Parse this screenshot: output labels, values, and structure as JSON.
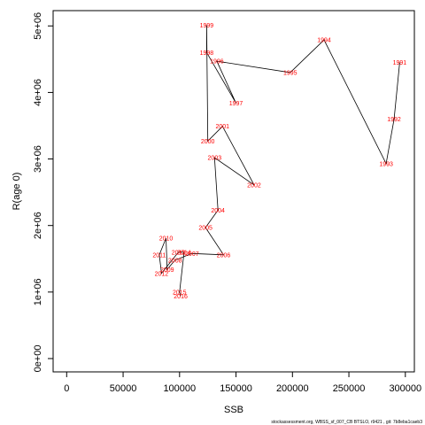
{
  "chart_data": {
    "type": "line",
    "xlabel": "SSB",
    "ylabel": "R(age 0)",
    "footer": "stockassessment.org,  WBSS_sf_007_CB BTSLO,  r9421 ,  git: 7b8eba1caeb3",
    "xlim": [
      -12000,
      308000
    ],
    "ylim": [
      -200000,
      5230000
    ],
    "x_ticks": [
      0,
      50000,
      100000,
      150000,
      200000,
      250000,
      300000
    ],
    "y_ticks": [
      0,
      1000000,
      2000000,
      3000000,
      4000000,
      5000000
    ],
    "x_tick_labels": [
      "0",
      "50000",
      "100000",
      "150000",
      "200000",
      "250000",
      "300000"
    ],
    "y_tick_labels": [
      "0e+00",
      "1e+06",
      "2e+06",
      "3e+06",
      "4e+06",
      "5e+06"
    ],
    "line_color": "#000000",
    "label_color": "#ff0000",
    "points": [
      {
        "label": "1991",
        "x": 295000,
        "y": 4450000
      },
      {
        "label": "1992",
        "x": 290000,
        "y": 3600000
      },
      {
        "label": "1993",
        "x": 283000,
        "y": 2930000
      },
      {
        "label": "1994",
        "x": 228000,
        "y": 4790000
      },
      {
        "label": "1995",
        "x": 198000,
        "y": 4300000
      },
      {
        "label": "1996",
        "x": 133000,
        "y": 4470000
      },
      {
        "label": "1997",
        "x": 150000,
        "y": 3840000
      },
      {
        "label": "1998",
        "x": 124000,
        "y": 4600000
      },
      {
        "label": "1999",
        "x": 124000,
        "y": 5010000
      },
      {
        "label": "2000",
        "x": 125000,
        "y": 3270000
      },
      {
        "label": "2001",
        "x": 138000,
        "y": 3490000
      },
      {
        "label": "2002",
        "x": 166000,
        "y": 2610000
      },
      {
        "label": "2003",
        "x": 131000,
        "y": 3020000
      },
      {
        "label": "2004",
        "x": 134000,
        "y": 2230000
      },
      {
        "label": "2005",
        "x": 123000,
        "y": 1970000
      },
      {
        "label": "2006",
        "x": 139000,
        "y": 1560000
      },
      {
        "label": "2007",
        "x": 111000,
        "y": 1580000
      },
      {
        "label": "2008",
        "x": 96000,
        "y": 1480000
      },
      {
        "label": "2009",
        "x": 89000,
        "y": 1340000
      },
      {
        "label": "2010",
        "x": 88000,
        "y": 1810000
      },
      {
        "label": "2011",
        "x": 82000,
        "y": 1560000
      },
      {
        "label": "2012",
        "x": 84000,
        "y": 1280000
      },
      {
        "label": "2013",
        "x": 99000,
        "y": 1600000
      },
      {
        "label": "2014",
        "x": 104000,
        "y": 1600000
      },
      {
        "label": "2015",
        "x": 100000,
        "y": 1000000
      },
      {
        "label": "2016",
        "x": 101000,
        "y": 940000
      }
    ]
  }
}
